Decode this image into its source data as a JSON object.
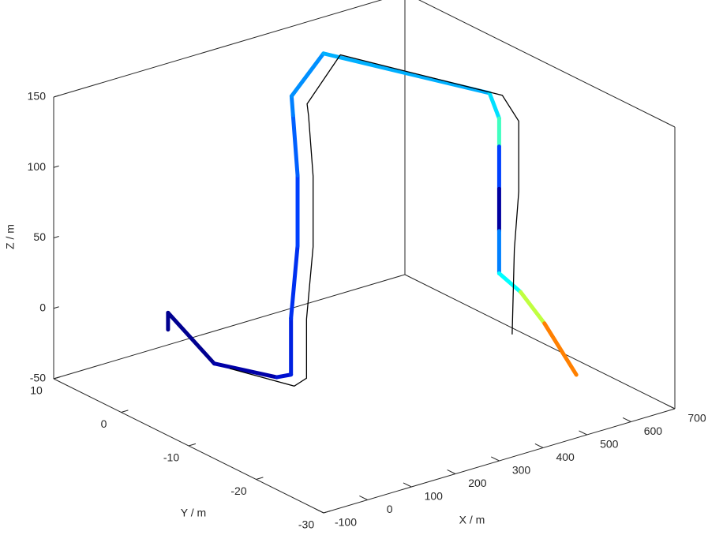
{
  "chart_data": {
    "type": "line3d",
    "xlabel": "X / m",
    "ylabel": "Y / m",
    "zlabel": "Z / m",
    "xlim": [
      -100,
      700
    ],
    "ylim": [
      -30,
      10
    ],
    "zlim": [
      -50,
      150
    ],
    "xticks": [
      -100,
      0,
      100,
      200,
      300,
      400,
      500,
      600,
      700
    ],
    "yticks": [
      -30,
      -20,
      -10,
      0,
      10
    ],
    "zticks": [
      -50,
      0,
      50,
      100,
      150
    ],
    "series": [
      {
        "x": [
          99,
          99,
          112,
          182,
          210,
          210,
          225,
          225,
          230,
          242,
          410,
          533,
          555,
          555,
          555,
          555,
          555,
          613,
          658,
          657
        ],
        "y": [
          6,
          6,
          0,
          -4.7,
          -5,
          -5,
          -5,
          -5,
          -4,
          -3,
          3.2,
          -13.4,
          -13.4,
          -13.4,
          -13.4,
          -13.4,
          -13.4,
          -12.8,
          -13.4,
          -18.2
        ],
        "z": [
          -24,
          -12,
          -35,
          -40,
          -40,
          0,
          50,
          100,
          140,
          150,
          150,
          150,
          130,
          110,
          80,
          50,
          20,
          0,
          -25,
          -50
        ],
        "colors": [
          "#00008f",
          "#000090",
          "#0000a8",
          "#0010d0",
          "#0020e0",
          "#0030f0",
          "#0040ff",
          "#0060ff",
          "#0080ff",
          "#0090ff",
          "#00b0ff",
          "#00e0ff",
          "#40ffc0",
          "#0040ff",
          "#0000a0",
          "#0080ff",
          "#00ffff",
          "#c0ff40",
          "#ff8000",
          "#c00000"
        ]
      },
      {
        "color": "#000000",
        "x": [
          132,
          202,
          230,
          230,
          245,
          245,
          250,
          262,
          430,
          553,
          575,
          575,
          565,
          560
        ],
        "y": [
          -1,
          -6,
          -6,
          -6,
          -6,
          -6,
          -5,
          -4,
          2,
          -14,
          -15,
          -15,
          -15,
          -15
        ],
        "z": [
          -38,
          -45,
          -42,
          0,
          50,
          100,
          140,
          145,
          150,
          148,
          130,
          80,
          40,
          -20
        ]
      }
    ]
  }
}
